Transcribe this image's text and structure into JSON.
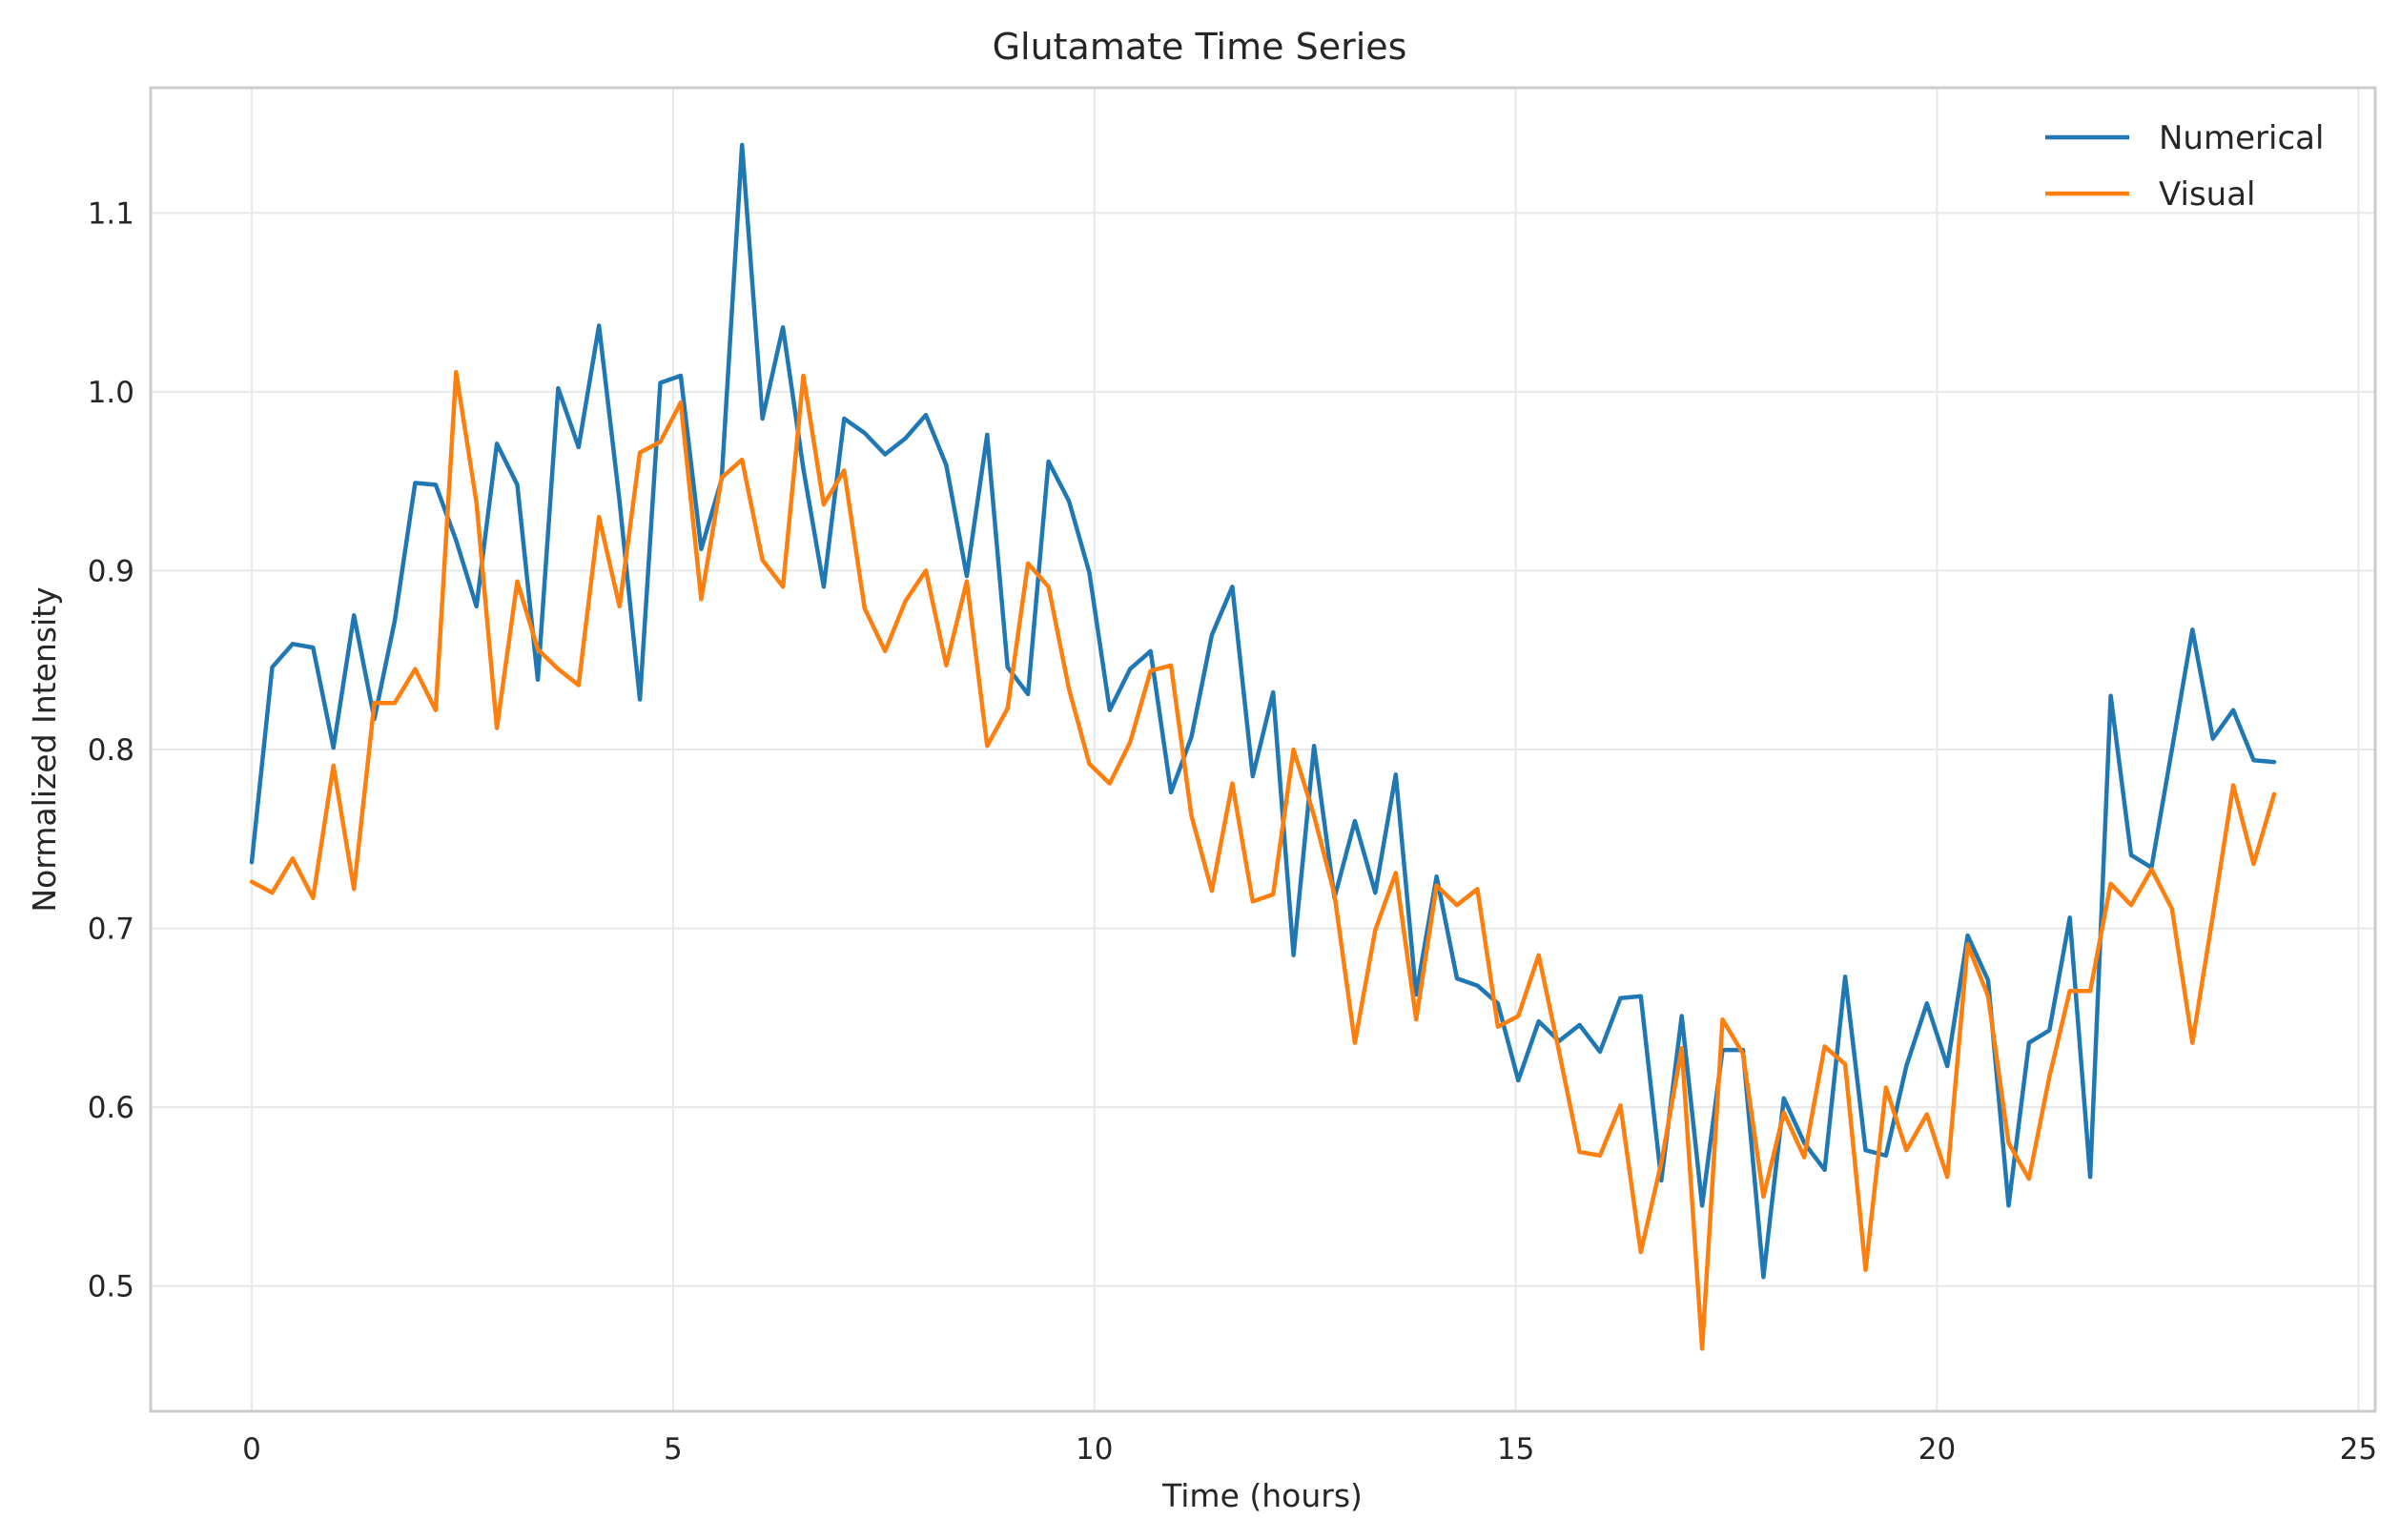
{
  "chart_data": {
    "type": "line",
    "title": "Glutamate Time Series",
    "xlabel": "Time (hours)",
    "ylabel": "Normalized Intensity",
    "xlim": [
      -1.2,
      25.2
    ],
    "ylim": [
      0.43,
      1.17
    ],
    "xticks": [
      0,
      5,
      10,
      15,
      20,
      25
    ],
    "yticks": [
      0.5,
      0.6,
      0.7,
      0.8,
      0.9,
      1.0,
      1.1
    ],
    "ytick_labels": [
      "0.5",
      "0.6",
      "0.7",
      "0.8",
      "0.9",
      "1.0",
      "1.1"
    ],
    "grid": true,
    "legend_position": "top-right",
    "x_start": 0,
    "x_end": 24,
    "series": [
      {
        "name": "Numerical",
        "color": "#1f77b4",
        "values": [
          0.737,
          0.846,
          0.859,
          0.857,
          0.801,
          0.875,
          0.817,
          0.872,
          0.949,
          0.948,
          0.917,
          0.88,
          0.971,
          0.948,
          0.839,
          1.002,
          0.969,
          1.037,
          0.939,
          0.828,
          1.005,
          1.009,
          0.912,
          0.951,
          1.138,
          0.985,
          1.036,
          0.957,
          0.891,
          0.985,
          0.977,
          0.965,
          0.974,
          0.987,
          0.959,
          0.897,
          0.976,
          0.846,
          0.831,
          0.961,
          0.939,
          0.899,
          0.822,
          0.845,
          0.855,
          0.776,
          0.807,
          0.864,
          0.891,
          0.785,
          0.832,
          0.685,
          0.802,
          0.717,
          0.76,
          0.72,
          0.786,
          0.663,
          0.729,
          0.672,
          0.668,
          0.658,
          0.615,
          0.648,
          0.637,
          0.646,
          0.631,
          0.661,
          0.662,
          0.559,
          0.651,
          0.545,
          0.632,
          0.632,
          0.505,
          0.605,
          0.58,
          0.565,
          0.673,
          0.576,
          0.573,
          0.623,
          0.658,
          0.623,
          0.696,
          0.671,
          0.545,
          0.636,
          0.643,
          0.706,
          0.561,
          0.83,
          0.741,
          0.734,
          0.8,
          0.867,
          0.806,
          0.822,
          0.794,
          0.793
        ]
      },
      {
        "name": "Visual",
        "color": "#ff7f0e",
        "values": [
          0.726,
          0.72,
          0.739,
          0.717,
          0.791,
          0.722,
          0.826,
          0.826,
          0.845,
          0.822,
          1.011,
          0.938,
          0.812,
          0.894,
          0.856,
          0.845,
          0.836,
          0.93,
          0.88,
          0.966,
          0.972,
          0.994,
          0.884,
          0.952,
          0.962,
          0.906,
          0.891,
          1.009,
          0.937,
          0.956,
          0.879,
          0.855,
          0.883,
          0.9,
          0.847,
          0.894,
          0.802,
          0.823,
          0.904,
          0.891,
          0.834,
          0.792,
          0.781,
          0.804,
          0.844,
          0.847,
          0.763,
          0.721,
          0.781,
          0.715,
          0.719,
          0.8,
          0.763,
          0.719,
          0.636,
          0.699,
          0.731,
          0.649,
          0.724,
          0.713,
          0.722,
          0.645,
          0.651,
          0.685,
          0.631,
          0.575,
          0.573,
          0.601,
          0.519,
          0.569,
          0.633,
          0.465,
          0.649,
          0.63,
          0.55,
          0.597,
          0.572,
          0.634,
          0.624,
          0.509,
          0.611,
          0.576,
          0.596,
          0.561,
          0.691,
          0.662,
          0.58,
          0.56,
          0.617,
          0.665,
          0.665,
          0.725,
          0.713,
          0.733,
          0.711,
          0.636,
          0.707,
          0.78,
          0.736,
          0.775
        ]
      }
    ]
  }
}
